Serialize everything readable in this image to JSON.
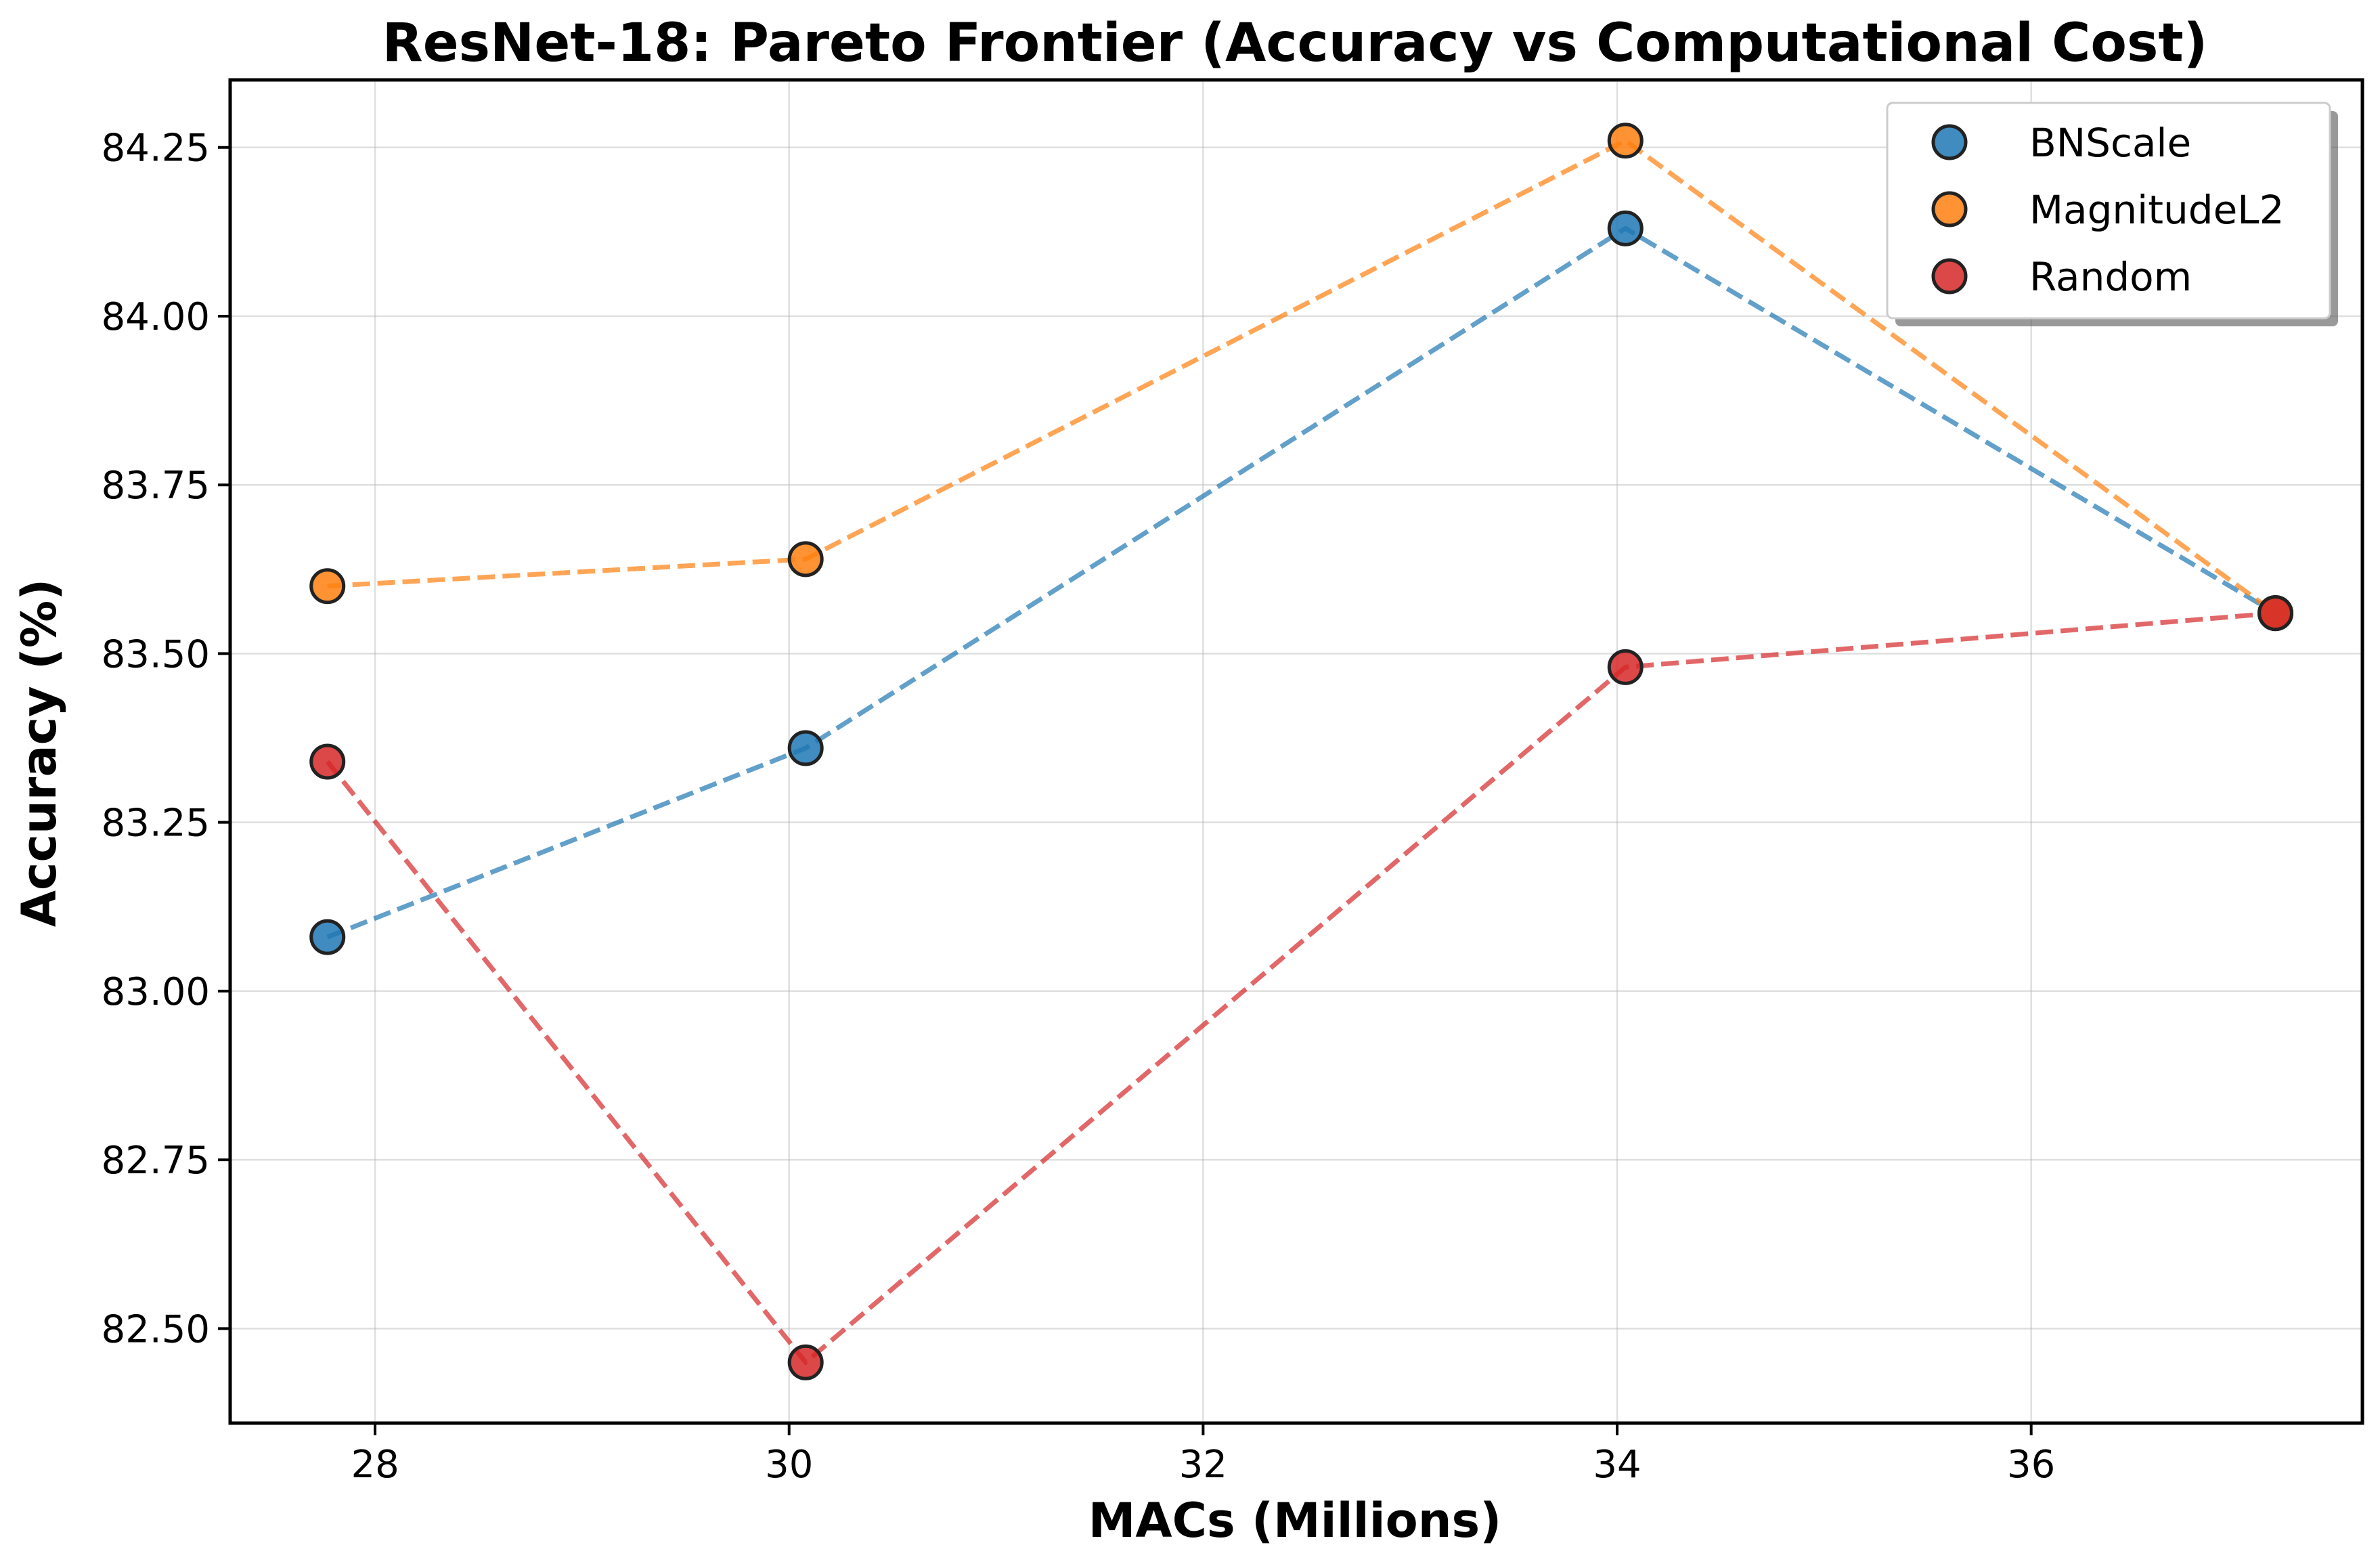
{
  "chart_data": {
    "type": "line",
    "title": "ResNet-18: Pareto Frontier (Accuracy vs Computational Cost)",
    "xlabel": "MACs (Millions)",
    "ylabel": "Accuracy (%)",
    "xlim": [
      27.3,
      37.6
    ],
    "ylim": [
      82.36,
      84.35
    ],
    "xticks": [
      28,
      30,
      32,
      34,
      36
    ],
    "xtick_labels": [
      "28",
      "30",
      "32",
      "34",
      "36"
    ],
    "yticks": [
      82.5,
      82.75,
      83.0,
      83.25,
      83.5,
      83.75,
      84.0,
      84.25
    ],
    "ytick_labels": [
      "82.50",
      "82.75",
      "83.00",
      "83.25",
      "83.50",
      "83.75",
      "84.00",
      "84.25"
    ],
    "grid": true,
    "legend_position": "top-right",
    "line_style": "dashed",
    "series": [
      {
        "name": "BNScale",
        "color": "#1f77b4",
        "x": [
          27.77,
          30.08,
          34.04,
          37.18
        ],
        "y": [
          83.08,
          83.36,
          84.13,
          83.56
        ]
      },
      {
        "name": "MagnitudeL2",
        "color": "#ff7f0e",
        "x": [
          27.77,
          30.08,
          34.04,
          37.18
        ],
        "y": [
          83.6,
          83.64,
          84.26,
          83.56
        ]
      },
      {
        "name": "Random",
        "color": "#d62728",
        "x": [
          27.77,
          30.08,
          34.04,
          37.18
        ],
        "y": [
          83.34,
          82.45,
          83.48,
          83.56
        ]
      }
    ]
  }
}
